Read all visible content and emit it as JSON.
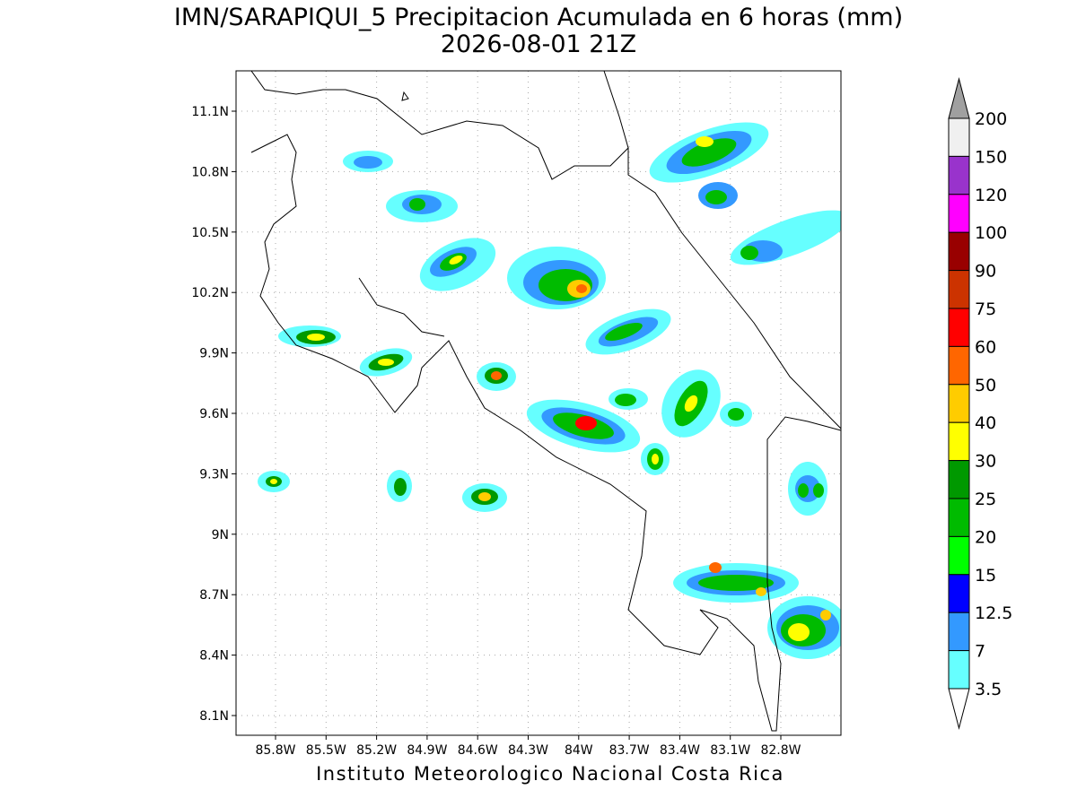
{
  "title": "IMN/SARAPIQUI_5 Precipitacion Acumulada en 6 horas (mm)",
  "subtitle": "2026-08-01 21Z",
  "map": {
    "lat_labels": [
      "11.1N",
      "10.8N",
      "10.5N",
      "10.2N",
      "9.9N",
      "9.6N",
      "9.3N",
      "9N",
      "8.7N",
      "8.4N",
      "8.1N"
    ],
    "lon_labels": [
      "85.8W",
      "85.5W",
      "85.2W",
      "84.9W",
      "84.6W",
      "84.3W",
      "84W",
      "83.7W",
      "83.4W",
      "83.1W",
      "82.8W"
    ]
  },
  "colorbar": {
    "labels": [
      "200",
      "150",
      "120",
      "100",
      "90",
      "75",
      "60",
      "50",
      "40",
      "30",
      "25",
      "20",
      "15",
      "12.5",
      "7",
      "3.5"
    ],
    "colors": [
      "#f0f0f0",
      "#9933cc",
      "#ff00ff",
      "#990000",
      "#cc3300",
      "#ff0000",
      "#ff6600",
      "#ffcc00",
      "#ffff00",
      "#009900",
      "#00bb00",
      "#00ff00",
      "#0000ff",
      "#3399ff",
      "#66ffff"
    ],
    "over_color": "#a0a0a0",
    "under_color": "#ffffff"
  },
  "footer": "Instituto Meteorologico Nacional Costa Rica"
}
